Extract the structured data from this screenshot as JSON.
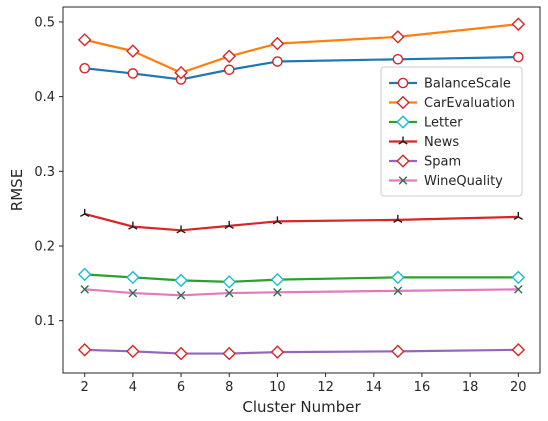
{
  "chart_data": {
    "type": "line",
    "title": "",
    "xlabel": "Cluster Number",
    "ylabel": "RMSE",
    "x": [
      2,
      4,
      6,
      8,
      10,
      15,
      20
    ],
    "xlim": [
      1.1,
      20.9
    ],
    "ylim": [
      0.03,
      0.52
    ],
    "xticks": [
      2,
      4,
      6,
      8,
      10,
      12,
      14,
      16,
      18,
      20
    ],
    "yticks": [
      0.1,
      0.2,
      0.3,
      0.4,
      0.5
    ],
    "ytick_labels": [
      "0.1",
      "0.2",
      "0.3",
      "0.4",
      "0.5"
    ],
    "grid": false,
    "legend_position": "center-right",
    "series": [
      {
        "name": "BalanceScale",
        "color": "#1f77b4",
        "marker": "circle",
        "marker_color": "#d62728",
        "values": [
          0.438,
          0.431,
          0.423,
          0.436,
          0.447,
          0.45,
          0.453
        ]
      },
      {
        "name": "CarEvaluation",
        "color": "#ff7f0e",
        "marker": "diamond",
        "marker_color": "#d62728",
        "values": [
          0.476,
          0.461,
          0.432,
          0.454,
          0.471,
          0.48,
          0.497
        ]
      },
      {
        "name": "Letter",
        "color": "#2ca02c",
        "marker": "diamond",
        "marker_color": "#17becf",
        "values": [
          0.162,
          0.158,
          0.154,
          0.152,
          0.155,
          0.158,
          0.158
        ]
      },
      {
        "name": "News",
        "color": "#d62728",
        "marker": "tri-up",
        "marker_color": "#1f1f1f",
        "values": [
          0.243,
          0.226,
          0.221,
          0.227,
          0.233,
          0.235,
          0.239
        ]
      },
      {
        "name": "Spam",
        "color": "#9467bd",
        "marker": "diamond",
        "marker_color": "#d62728",
        "values": [
          0.061,
          0.059,
          0.056,
          0.056,
          0.058,
          0.059,
          0.061
        ]
      },
      {
        "name": "WineQuality",
        "color": "#e377c2",
        "marker": "x",
        "marker_color": "#2f6f4f",
        "values": [
          0.142,
          0.137,
          0.134,
          0.137,
          0.138,
          0.14,
          0.142
        ]
      }
    ]
  }
}
